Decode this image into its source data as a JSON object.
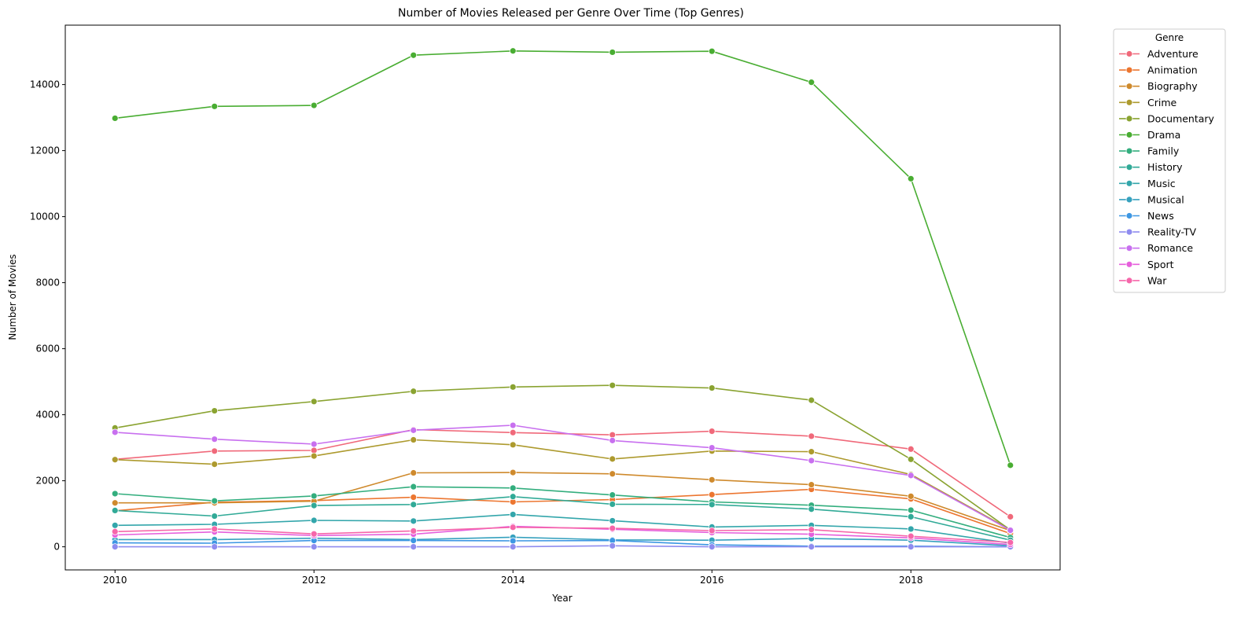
{
  "chart_data": {
    "type": "line",
    "title": "Number of Movies Released per Genre Over Time (Top Genres)",
    "xlabel": "Year",
    "ylabel": "Number of Movies",
    "xlim": [
      2009.5,
      2019.5
    ],
    "ylim": [
      -700,
      15800
    ],
    "xticks": [
      2010,
      2012,
      2014,
      2016,
      2018
    ],
    "yticks": [
      0,
      2000,
      4000,
      6000,
      8000,
      10000,
      12000,
      14000
    ],
    "grid": false,
    "legend_title": "Genre",
    "legend_position": "outside-top-right",
    "x": [
      2010,
      2011,
      2012,
      2013,
      2014,
      2015,
      2016,
      2017,
      2018,
      2019
    ],
    "series": [
      {
        "name": "Adventure",
        "color": "#f0697a",
        "values": [
          2650,
          2900,
          2920,
          3550,
          3460,
          3390,
          3500,
          3350,
          2960,
          910
        ]
      },
      {
        "name": "Animation",
        "color": "#ec7630",
        "values": [
          1090,
          1350,
          1400,
          1500,
          1360,
          1430,
          1580,
          1740,
          1450,
          400
        ]
      },
      {
        "name": "Biography",
        "color": "#cf8a2d",
        "values": [
          1330,
          1330,
          1380,
          2240,
          2250,
          2210,
          2030,
          1880,
          1530,
          490
        ]
      },
      {
        "name": "Crime",
        "color": "#ad9a2e",
        "values": [
          2640,
          2500,
          2750,
          3240,
          3090,
          2660,
          2900,
          2880,
          2190,
          520
        ]
      },
      {
        "name": "Documentary",
        "color": "#8aa331",
        "values": [
          3600,
          4120,
          4400,
          4710,
          4840,
          4890,
          4810,
          4440,
          2650,
          510
        ]
      },
      {
        "name": "Drama",
        "color": "#49ad32",
        "values": [
          12980,
          13340,
          13370,
          14890,
          15020,
          14980,
          15010,
          14070,
          11150,
          2470
        ]
      },
      {
        "name": "Family",
        "color": "#33ae7e",
        "values": [
          1610,
          1390,
          1540,
          1820,
          1780,
          1570,
          1360,
          1260,
          1110,
          280
        ]
      },
      {
        "name": "History",
        "color": "#31aa97",
        "values": [
          1100,
          930,
          1250,
          1280,
          1520,
          1290,
          1280,
          1140,
          910,
          200
        ]
      },
      {
        "name": "Music",
        "color": "#33a6ab",
        "values": [
          650,
          680,
          800,
          780,
          980,
          790,
          600,
          650,
          540,
          110
        ]
      },
      {
        "name": "Musical",
        "color": "#36a1be",
        "values": [
          220,
          220,
          260,
          220,
          290,
          210,
          200,
          250,
          200,
          30
        ]
      },
      {
        "name": "News",
        "color": "#3d97e3",
        "values": [
          120,
          110,
          190,
          190,
          180,
          190,
          60,
          20,
          20,
          0
        ]
      },
      {
        "name": "Reality-TV",
        "color": "#8f8cef",
        "values": [
          0,
          0,
          0,
          0,
          0,
          30,
          0,
          0,
          0,
          0
        ]
      },
      {
        "name": "Romance",
        "color": "#c870ef",
        "values": [
          3470,
          3260,
          3110,
          3530,
          3680,
          3220,
          3000,
          2610,
          2160,
          500
        ]
      },
      {
        "name": "Sport",
        "color": "#e65fdc",
        "values": [
          360,
          450,
          340,
          380,
          620,
          530,
          430,
          380,
          270,
          70
        ]
      },
      {
        "name": "War",
        "color": "#f666aa",
        "values": [
          460,
          540,
          390,
          480,
          590,
          560,
          490,
          520,
          320,
          130
        ]
      }
    ]
  }
}
